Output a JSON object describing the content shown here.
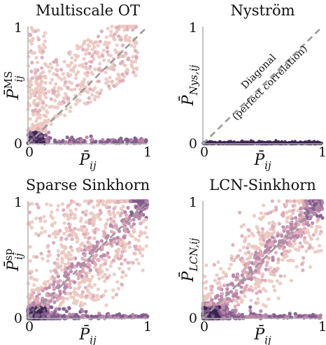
{
  "chart_data": [
    {
      "type": "scatter",
      "title": "Multiscale OT",
      "xlabel": "P̄",
      "xlabel_sub": "ij",
      "ylabel": "P̄",
      "ylabel_sub": "ij",
      "ylabel_sup": "MS",
      "xlim": [
        0,
        1
      ],
      "ylim": [
        0,
        1
      ],
      "xticks": [
        "0",
        "1"
      ],
      "yticks": [
        "0",
        "1"
      ],
      "diagonal": true,
      "grid": false,
      "pattern": "multiscale",
      "points_summary": [
        {
          "x": 0.05,
          "y": 0.08,
          "density": "high"
        },
        {
          "x": 0.5,
          "y": 0.02,
          "density": "medium"
        },
        {
          "x": 0.3,
          "y": 0.5,
          "density": "low"
        },
        {
          "x": 0.8,
          "y": 0.75,
          "density": "low"
        }
      ]
    },
    {
      "type": "scatter",
      "title": "Nyström",
      "xlabel": "P̄",
      "xlabel_sub": "ij",
      "ylabel": "P̄",
      "ylabel_sub": "Nys,ij",
      "ylabel_sup": "",
      "xlim": [
        0,
        1
      ],
      "ylim": [
        0,
        1
      ],
      "xticks": [
        "0",
        "1"
      ],
      "yticks": [
        "0",
        "1"
      ],
      "diagonal": true,
      "grid": false,
      "annotation": {
        "line1": "Diagonal",
        "line2": "(perfect correlation)"
      },
      "pattern": "nystrom",
      "points_summary": [
        {
          "x": 0.5,
          "y": 0.01,
          "density": "high"
        }
      ]
    },
    {
      "type": "scatter",
      "title": "Sparse Sinkhorn",
      "xlabel": "P̄",
      "xlabel_sub": "ij",
      "ylabel": "P̄",
      "ylabel_sub": "ij",
      "ylabel_sup": "sp",
      "xlim": [
        0,
        1
      ],
      "ylim": [
        0,
        1
      ],
      "xticks": [
        "0",
        "1"
      ],
      "yticks": [
        "0",
        "1"
      ],
      "diagonal": true,
      "grid": false,
      "pattern": "sparse",
      "points_summary": [
        {
          "x": 0.5,
          "y": 0.5,
          "density": "high"
        },
        {
          "x": 0.1,
          "y": 0.06,
          "density": "high"
        },
        {
          "x": 0.97,
          "y": 0.97,
          "density": "high"
        }
      ]
    },
    {
      "type": "scatter",
      "title": "LCN-Sinkhorn",
      "xlabel": "P̄",
      "xlabel_sub": "ij",
      "ylabel": "P̄",
      "ylabel_sub": "LCN,ij",
      "ylabel_sup": "",
      "xlim": [
        0,
        1
      ],
      "ylim": [
        0,
        1
      ],
      "xticks": [
        "0",
        "1"
      ],
      "yticks": [
        "0",
        "1"
      ],
      "diagonal": true,
      "grid": false,
      "pattern": "lcn",
      "points_summary": [
        {
          "x": 0.5,
          "y": 0.5,
          "density": "high"
        },
        {
          "x": 0.1,
          "y": 0.05,
          "density": "high"
        },
        {
          "x": 0.97,
          "y": 0.97,
          "density": "high"
        }
      ]
    }
  ],
  "colors": {
    "light": "#ecc8c0",
    "mid_light": "#dca9b6",
    "mid": "#b784a7",
    "mid_dark": "#805c8c",
    "dark": "#3b2450",
    "diagonal_line": "#9a9a9a",
    "axes": "#b5b5b5"
  }
}
